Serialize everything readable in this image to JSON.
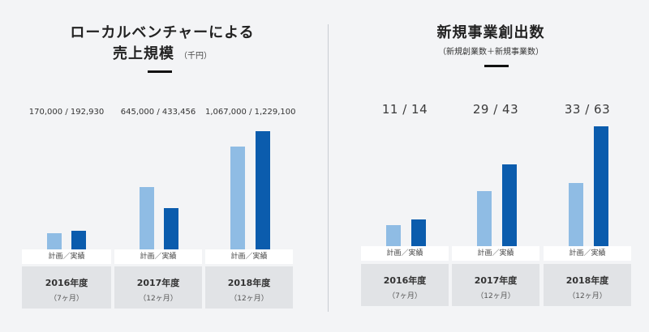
{
  "left": {
    "title": "ローカルベンチャーによる",
    "title2": "売上規模",
    "unit": "（千円）"
  },
  "right": {
    "title": "新規事業創出数",
    "subtitle": "（新規創業数＋新規事業数）"
  },
  "bar_caption": "計画／実績",
  "colors": {
    "plan": "#8fbce4",
    "actual": "#0b5cad"
  },
  "chart_data": [
    {
      "type": "bar",
      "title": "ローカルベンチャーによる売上規模（千円）",
      "categories": [
        "2016年度",
        "2017年度",
        "2018年度"
      ],
      "periods": [
        "（7ヶ月）",
        "（12ヶ月）",
        "（12ヶ月）"
      ],
      "labels": [
        "170,000 / 192,930",
        "645,000 / 433,456",
        "1,067,000 / 1,229,100"
      ],
      "series": [
        {
          "name": "計画",
          "values": [
            170000,
            645000,
            1067000
          ]
        },
        {
          "name": "実績",
          "values": [
            192930,
            433456,
            1229100
          ]
        }
      ],
      "ylim": [
        0,
        1229100
      ]
    },
    {
      "type": "bar",
      "title": "新規事業創出数",
      "categories": [
        "2016年度",
        "2017年度",
        "2018年度"
      ],
      "periods": [
        "（7ヶ月）",
        "（12ヶ月）",
        "（12ヶ月）"
      ],
      "labels": [
        "11 / 14",
        "29 / 43",
        "33 / 63"
      ],
      "series": [
        {
          "name": "計画",
          "values": [
            11,
            29,
            33
          ]
        },
        {
          "name": "実績",
          "values": [
            14,
            43,
            63
          ]
        }
      ],
      "ylim": [
        0,
        63
      ]
    }
  ]
}
